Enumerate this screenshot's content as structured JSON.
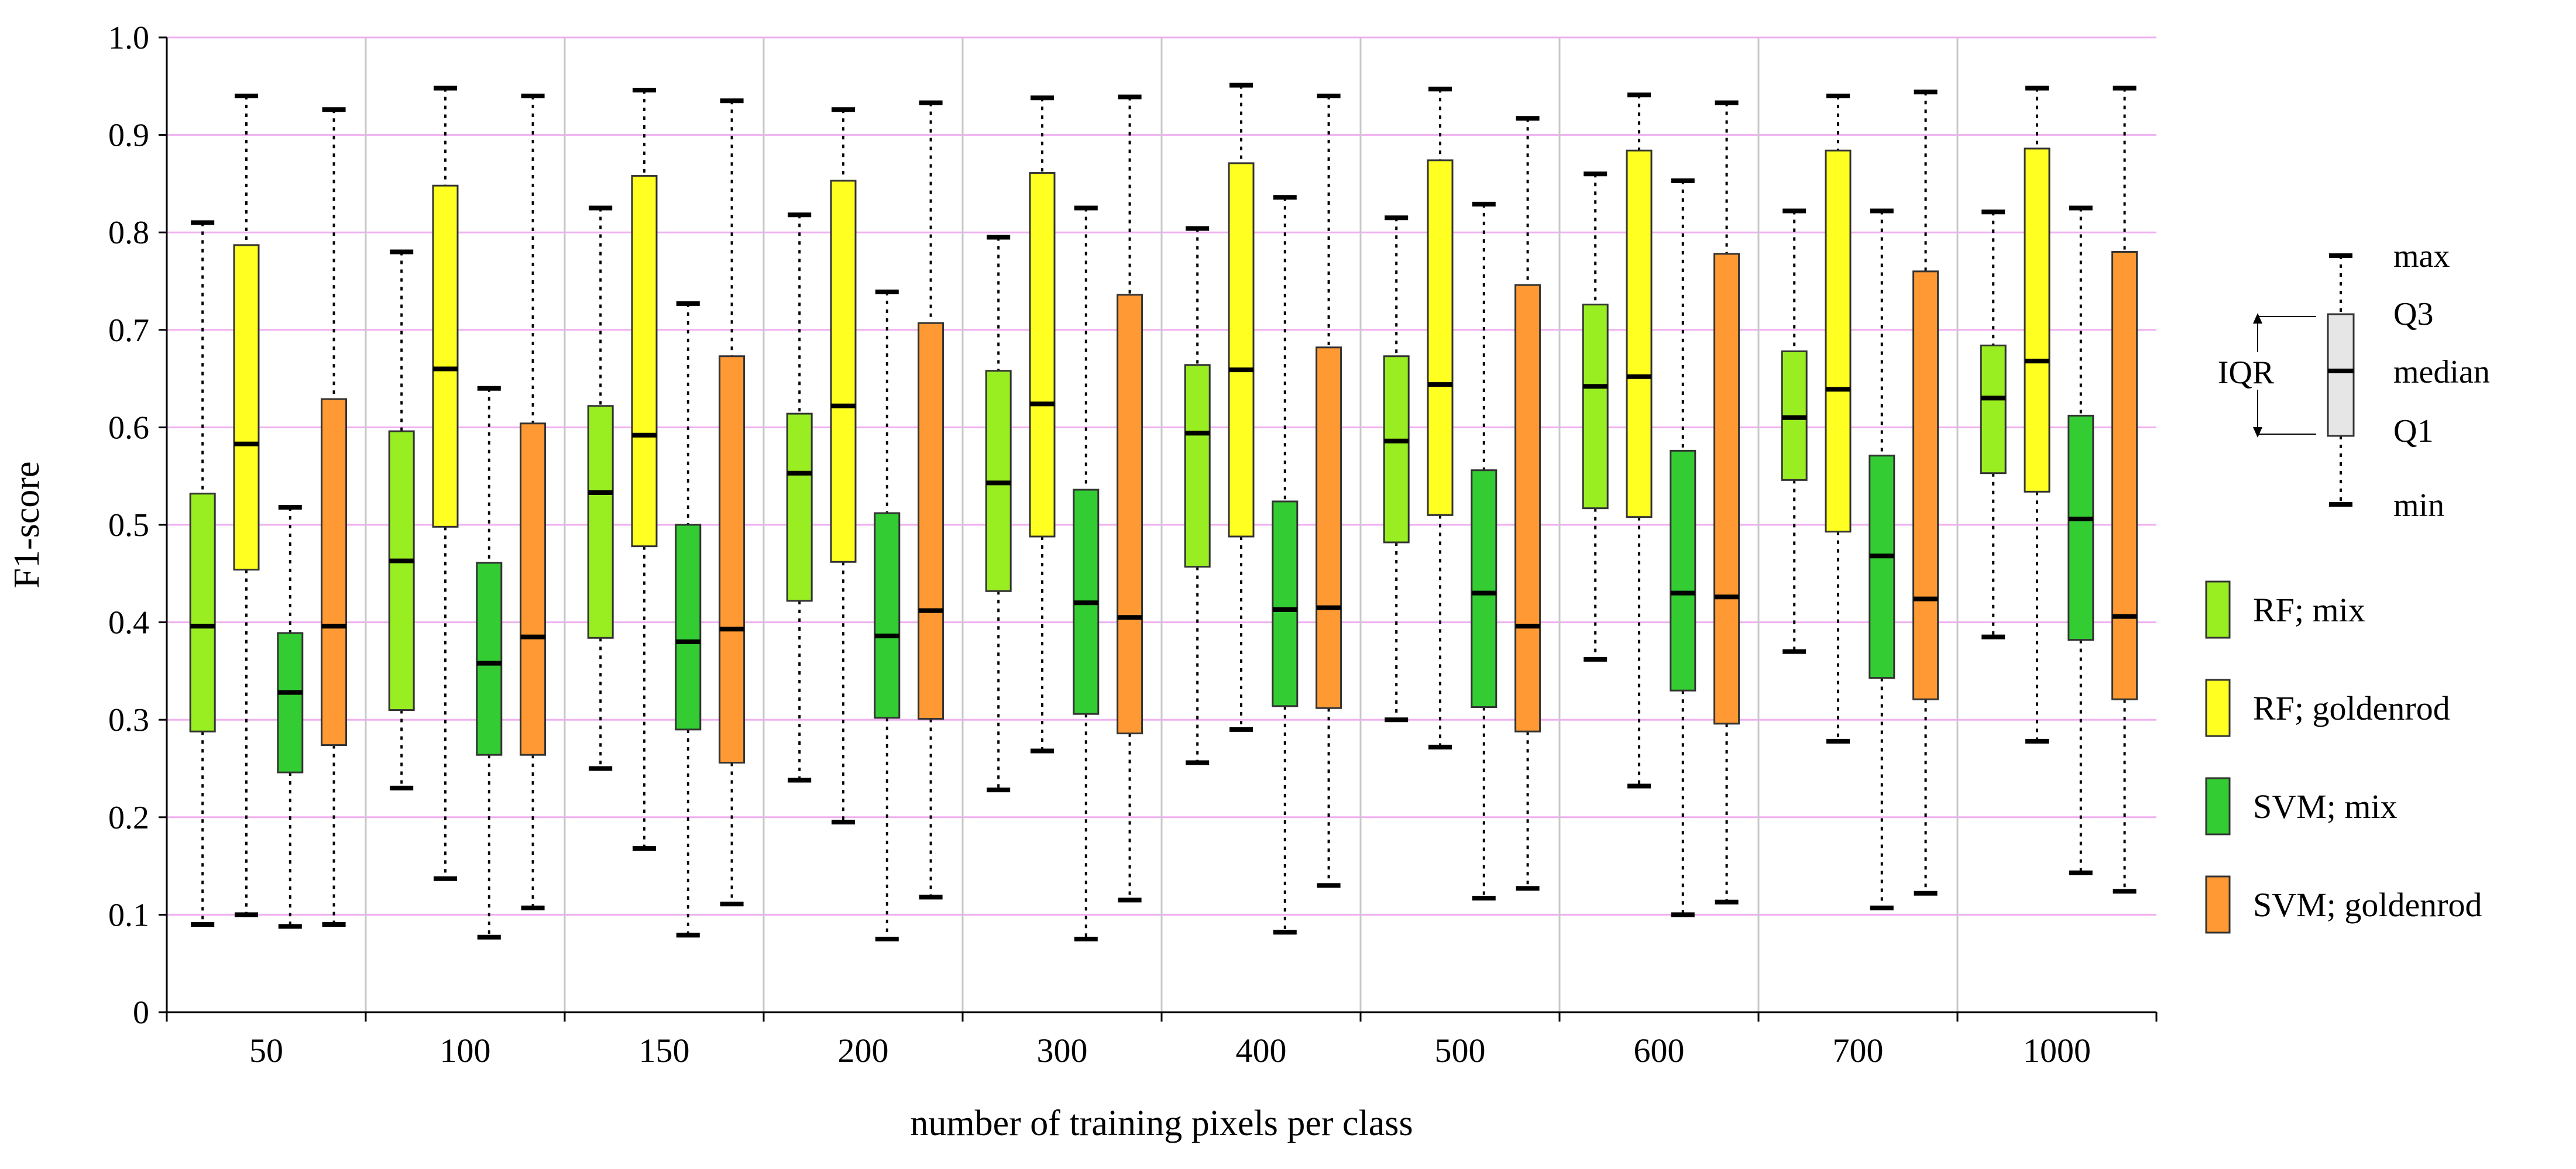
{
  "chart_data": {
    "type": "box",
    "title": "",
    "xlabel": "number of training pixels per class",
    "ylabel": "F1-score",
    "ylim": [
      0,
      1.0
    ],
    "yticks": [
      "0",
      "0.1",
      "0.2",
      "0.3",
      "0.4",
      "0.5",
      "0.6",
      "0.7",
      "0.8",
      "0.9",
      "1.0"
    ],
    "ytick_values": [
      0,
      0.1,
      0.2,
      0.3,
      0.4,
      0.5,
      0.6,
      0.7,
      0.8,
      0.9,
      1.0
    ],
    "categories": [
      "50",
      "100",
      "150",
      "200",
      "300",
      "400",
      "500",
      "600",
      "700",
      "1000"
    ],
    "series": [
      {
        "name": "RF; mix",
        "color": "#99ee22",
        "boxes": [
          {
            "min": 0.09,
            "q1": 0.288,
            "median": 0.396,
            "q3": 0.532,
            "max": 0.81
          },
          {
            "min": 0.23,
            "q1": 0.31,
            "median": 0.463,
            "q3": 0.596,
            "max": 0.78
          },
          {
            "min": 0.25,
            "q1": 0.384,
            "median": 0.533,
            "q3": 0.622,
            "max": 0.825
          },
          {
            "min": 0.238,
            "q1": 0.422,
            "median": 0.553,
            "q3": 0.614,
            "max": 0.818
          },
          {
            "min": 0.228,
            "q1": 0.432,
            "median": 0.543,
            "q3": 0.658,
            "max": 0.795
          },
          {
            "min": 0.256,
            "q1": 0.457,
            "median": 0.594,
            "q3": 0.664,
            "max": 0.804
          },
          {
            "min": 0.3,
            "q1": 0.482,
            "median": 0.586,
            "q3": 0.673,
            "max": 0.815
          },
          {
            "min": 0.362,
            "q1": 0.517,
            "median": 0.642,
            "q3": 0.726,
            "max": 0.86
          },
          {
            "min": 0.37,
            "q1": 0.546,
            "median": 0.61,
            "q3": 0.678,
            "max": 0.822
          },
          {
            "min": 0.385,
            "q1": 0.553,
            "median": 0.63,
            "q3": 0.684,
            "max": 0.821
          }
        ]
      },
      {
        "name": "RF; goldenrod",
        "color": "#ffff22",
        "boxes": [
          {
            "min": 0.1,
            "q1": 0.454,
            "median": 0.583,
            "q3": 0.787,
            "max": 0.94
          },
          {
            "min": 0.137,
            "q1": 0.498,
            "median": 0.66,
            "q3": 0.848,
            "max": 0.948
          },
          {
            "min": 0.168,
            "q1": 0.478,
            "median": 0.592,
            "q3": 0.858,
            "max": 0.946
          },
          {
            "min": 0.195,
            "q1": 0.462,
            "median": 0.622,
            "q3": 0.853,
            "max": 0.926
          },
          {
            "min": 0.268,
            "q1": 0.488,
            "median": 0.624,
            "q3": 0.861,
            "max": 0.938
          },
          {
            "min": 0.29,
            "q1": 0.488,
            "median": 0.659,
            "q3": 0.871,
            "max": 0.951
          },
          {
            "min": 0.272,
            "q1": 0.51,
            "median": 0.644,
            "q3": 0.874,
            "max": 0.947
          },
          {
            "min": 0.232,
            "q1": 0.508,
            "median": 0.652,
            "q3": 0.884,
            "max": 0.941
          },
          {
            "min": 0.278,
            "q1": 0.493,
            "median": 0.639,
            "q3": 0.884,
            "max": 0.94
          },
          {
            "min": 0.278,
            "q1": 0.534,
            "median": 0.668,
            "q3": 0.886,
            "max": 0.948
          }
        ]
      },
      {
        "name": "SVM; mix",
        "color": "#33cc33",
        "boxes": [
          {
            "min": 0.088,
            "q1": 0.246,
            "median": 0.328,
            "q3": 0.389,
            "max": 0.518
          },
          {
            "min": 0.077,
            "q1": 0.264,
            "median": 0.358,
            "q3": 0.461,
            "max": 0.64
          },
          {
            "min": 0.079,
            "q1": 0.29,
            "median": 0.38,
            "q3": 0.5,
            "max": 0.727
          },
          {
            "min": 0.075,
            "q1": 0.302,
            "median": 0.386,
            "q3": 0.512,
            "max": 0.739
          },
          {
            "min": 0.075,
            "q1": 0.306,
            "median": 0.42,
            "q3": 0.536,
            "max": 0.825
          },
          {
            "min": 0.082,
            "q1": 0.314,
            "median": 0.413,
            "q3": 0.524,
            "max": 0.836
          },
          {
            "min": 0.117,
            "q1": 0.313,
            "median": 0.43,
            "q3": 0.556,
            "max": 0.829
          },
          {
            "min": 0.1,
            "q1": 0.33,
            "median": 0.43,
            "q3": 0.576,
            "max": 0.853
          },
          {
            "min": 0.107,
            "q1": 0.343,
            "median": 0.468,
            "q3": 0.571,
            "max": 0.822
          },
          {
            "min": 0.143,
            "q1": 0.382,
            "median": 0.506,
            "q3": 0.612,
            "max": 0.825
          }
        ]
      },
      {
        "name": "SVM; goldenrod",
        "color": "#ff9933",
        "boxes": [
          {
            "min": 0.09,
            "q1": 0.274,
            "median": 0.396,
            "q3": 0.629,
            "max": 0.926
          },
          {
            "min": 0.107,
            "q1": 0.264,
            "median": 0.385,
            "q3": 0.604,
            "max": 0.94
          },
          {
            "min": 0.111,
            "q1": 0.256,
            "median": 0.393,
            "q3": 0.673,
            "max": 0.935
          },
          {
            "min": 0.118,
            "q1": 0.301,
            "median": 0.412,
            "q3": 0.707,
            "max": 0.933
          },
          {
            "min": 0.115,
            "q1": 0.286,
            "median": 0.405,
            "q3": 0.736,
            "max": 0.939
          },
          {
            "min": 0.13,
            "q1": 0.312,
            "median": 0.415,
            "q3": 0.682,
            "max": 0.94
          },
          {
            "min": 0.127,
            "q1": 0.288,
            "median": 0.396,
            "q3": 0.746,
            "max": 0.917
          },
          {
            "min": 0.113,
            "q1": 0.296,
            "median": 0.426,
            "q3": 0.778,
            "max": 0.933
          },
          {
            "min": 0.122,
            "q1": 0.321,
            "median": 0.424,
            "q3": 0.76,
            "max": 0.944
          },
          {
            "min": 0.124,
            "q1": 0.321,
            "median": 0.406,
            "q3": 0.78,
            "max": 0.948
          }
        ]
      }
    ],
    "key": {
      "labels": [
        "max",
        "Q3",
        "median",
        "Q1",
        "min"
      ],
      "iqr_label": "IQR"
    },
    "grid": true,
    "gridline_color": "#f0b0f0",
    "legend_position": "right"
  }
}
